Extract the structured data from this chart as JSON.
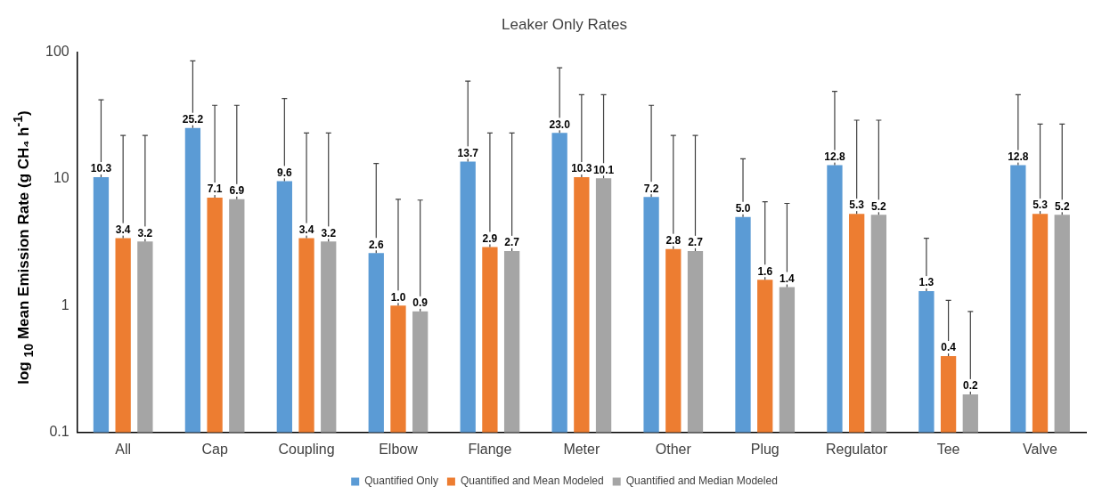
{
  "chart_data": {
    "type": "bar",
    "title": "Leaker Only Rates",
    "ylabel": "log $_{10}$ Mean Emission Rate (g CH₄ h$^{-1}$)",
    "categories": [
      "All",
      "Cap",
      "Coupling",
      "Elbow",
      "Flange",
      "Meter",
      "Other",
      "Plug",
      "Regulator",
      "Tee",
      "Valve"
    ],
    "series": [
      {
        "name": "Quantified Only",
        "color": "#5b9bd5",
        "values": [
          10.3,
          25.2,
          9.6,
          2.6,
          13.7,
          23.0,
          7.2,
          5.0,
          12.8,
          1.3,
          12.8
        ],
        "value_labels": [
          "10.3",
          "25.2",
          "9.6",
          "2.6",
          "13.7",
          "23.0",
          "7.2",
          "5.0",
          "12.8",
          "1.3",
          "12.8"
        ],
        "errors": [
          [
            10.3,
            42
          ],
          [
            25.2,
            85
          ],
          [
            9.6,
            43
          ],
          [
            2.6,
            13.2
          ],
          [
            13.7,
            59
          ],
          [
            23.0,
            75
          ],
          [
            7.2,
            38
          ],
          [
            5.0,
            14.4
          ],
          [
            12.8,
            49
          ],
          [
            1.3,
            3.4
          ],
          [
            12.8,
            46
          ]
        ]
      },
      {
        "name": "Quantified and Mean Modeled",
        "color": "#ed7d31",
        "values": [
          3.4,
          7.1,
          3.4,
          1.0,
          2.9,
          10.3,
          2.8,
          1.6,
          5.3,
          0.4,
          5.3
        ],
        "value_labels": [
          "3.4",
          "7.1",
          "3.4",
          "1.0",
          "2.9",
          "10.3",
          "2.8",
          "1.6",
          "5.3",
          "0.4",
          "5.3"
        ],
        "errors": [
          [
            3.4,
            22
          ],
          [
            7.1,
            38
          ],
          [
            3.4,
            23
          ],
          [
            1.0,
            6.9
          ],
          [
            2.9,
            23
          ],
          [
            10.3,
            46
          ],
          [
            2.8,
            22
          ],
          [
            1.6,
            6.6
          ],
          [
            5.3,
            29
          ],
          [
            0.4,
            1.1
          ],
          [
            5.3,
            27
          ]
        ]
      },
      {
        "name": "Quantified and Median Modeled",
        "color": "#a5a5a5",
        "values": [
          3.2,
          6.9,
          3.2,
          0.9,
          2.7,
          10.1,
          2.7,
          1.4,
          5.2,
          0.2,
          5.2
        ],
        "value_labels": [
          "3.2",
          "6.9",
          "3.2",
          "0.9",
          "2.7",
          "10.1",
          "2.7",
          "1.4",
          "5.2",
          "0.2",
          "5.2"
        ],
        "errors": [
          [
            3.2,
            22
          ],
          [
            6.9,
            38
          ],
          [
            3.2,
            23
          ],
          [
            0.9,
            6.8
          ],
          [
            2.7,
            23
          ],
          [
            10.1,
            46
          ],
          [
            2.7,
            22
          ],
          [
            1.4,
            6.4
          ],
          [
            5.2,
            29
          ],
          [
            0.2,
            0.9
          ],
          [
            5.2,
            27
          ]
        ]
      }
    ],
    "log": true,
    "ylim": [
      0.1,
      100
    ],
    "yticks": [
      0.1,
      1,
      10,
      100
    ],
    "grid": false,
    "legend": "bottom"
  }
}
